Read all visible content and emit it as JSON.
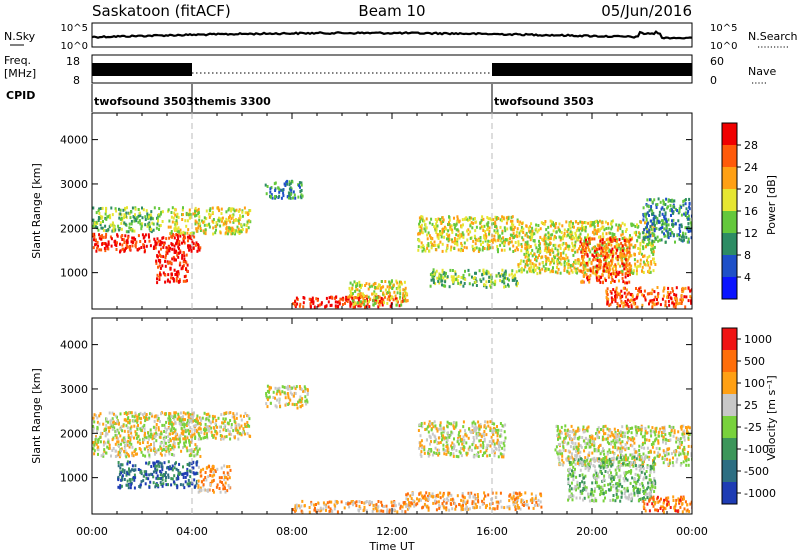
{
  "header": {
    "station": "Saskatoon (fitACF)",
    "beam": "Beam 10",
    "date": "05/Jun/2016"
  },
  "noise_panel": {
    "left_label": "N.Sky",
    "right_label": "N.Search",
    "left_ticks": [
      "10^5",
      "10^0"
    ],
    "right_ticks": [
      "10^5",
      "10^0"
    ]
  },
  "freq_panel": {
    "left_label_top": "Freq.",
    "left_label_bottom": "[MHz]",
    "right_label": "Nave",
    "left_ticks": [
      "18",
      "8"
    ],
    "right_ticks": [
      "60",
      "0"
    ]
  },
  "cpid": {
    "label": "CPID",
    "segments": [
      {
        "name": "twofsound 3503",
        "start_h": 0,
        "end_h": 4
      },
      {
        "name": "themis 3300",
        "start_h": 4,
        "end_h": 16
      },
      {
        "name": "twofsound 3503",
        "start_h": 16,
        "end_h": 24
      }
    ]
  },
  "x_axis": {
    "label": "Time UT",
    "range_h": [
      0,
      24
    ],
    "ticks": [
      {
        "h": 0,
        "label": "00:00"
      },
      {
        "h": 4,
        "label": "04:00"
      },
      {
        "h": 8,
        "label": "08:00"
      },
      {
        "h": 12,
        "label": "12:00"
      },
      {
        "h": 16,
        "label": "16:00"
      },
      {
        "h": 20,
        "label": "20:00"
      },
      {
        "h": 24,
        "label": "00:00"
      }
    ]
  },
  "chart_data": [
    {
      "type": "heatmap",
      "name": "power",
      "ylabel": "Slant Range [km]",
      "ylim": [
        180,
        4600
      ],
      "yticks": [
        1000,
        2000,
        3000,
        4000
      ],
      "colorbar_label": "Power [dB]",
      "colorbar_ticks": [
        "4",
        "8",
        "12",
        "16",
        "20",
        "24",
        "28"
      ],
      "colorbar_colors": [
        "#0a14ff",
        "#1e50c8",
        "#2d8c64",
        "#64c83c",
        "#e6e632",
        "#ffa014",
        "#ff5a0a",
        "#f00000"
      ],
      "features": [
        {
          "h": [
            0.0,
            4.3
          ],
          "range_km": [
            1500,
            1900
          ],
          "level": 7
        },
        {
          "h": [
            0.0,
            2.8
          ],
          "range_km": [
            1950,
            2500
          ],
          "level": 3
        },
        {
          "h": [
            2.5,
            3.8
          ],
          "range_km": [
            800,
            1500
          ],
          "level": 7
        },
        {
          "h": [
            3.0,
            6.3
          ],
          "range_km": [
            1900,
            2500
          ],
          "level": 4
        },
        {
          "h": [
            6.9,
            8.4
          ],
          "range_km": [
            2700,
            3100
          ],
          "level": 2
        },
        {
          "h": [
            8.0,
            12.5
          ],
          "range_km": [
            250,
            500
          ],
          "level": 7
        },
        {
          "h": [
            10.2,
            12.6
          ],
          "range_km": [
            300,
            850
          ],
          "level": 4
        },
        {
          "h": [
            13.0,
            17.0
          ],
          "range_km": [
            1500,
            2300
          ],
          "level": 4
        },
        {
          "h": [
            13.5,
            17.0
          ],
          "range_km": [
            700,
            1100
          ],
          "level": 3
        },
        {
          "h": [
            17.0,
            22.5
          ],
          "range_km": [
            1000,
            2200
          ],
          "level": 4
        },
        {
          "h": [
            19.5,
            21.5
          ],
          "range_km": [
            800,
            1800
          ],
          "level": 6
        },
        {
          "h": [
            20.5,
            24.0
          ],
          "range_km": [
            250,
            700
          ],
          "level": 6
        },
        {
          "h": [
            22.0,
            24.0
          ],
          "range_km": [
            1700,
            2700
          ],
          "level": 2
        }
      ]
    },
    {
      "type": "heatmap",
      "name": "velocity",
      "ylabel": "Slant Range [km]",
      "ylim": [
        180,
        4600
      ],
      "yticks": [
        1000,
        2000,
        3000,
        4000
      ],
      "colorbar_label": "Velocity [m s⁻¹]",
      "colorbar_ticks": [
        "1000",
        "500",
        "100",
        "25",
        "-25",
        "-100",
        "-500",
        "-1000"
      ],
      "colorbar_colors": [
        "#1e3cb4",
        "#2d6e82",
        "#3c965a",
        "#78d23c",
        "#c8c8c8",
        "#ffa014",
        "#ff6e0a",
        "#f01414"
      ],
      "features": [
        {
          "h": [
            0.0,
            4.3
          ],
          "range_km": [
            1500,
            2500
          ],
          "level": 4
        },
        {
          "h": [
            1.0,
            4.2
          ],
          "range_km": [
            800,
            1400
          ],
          "level": 1
        },
        {
          "h": [
            3.0,
            6.3
          ],
          "range_km": [
            1900,
            2500
          ],
          "level": 4
        },
        {
          "h": [
            4.2,
            5.5
          ],
          "range_km": [
            700,
            1300
          ],
          "level": 5
        },
        {
          "h": [
            6.9,
            8.6
          ],
          "range_km": [
            2600,
            3100
          ],
          "level": 4
        },
        {
          "h": [
            8.0,
            12.5
          ],
          "range_km": [
            250,
            500
          ],
          "level": 5
        },
        {
          "h": [
            12.5,
            18.0
          ],
          "range_km": [
            300,
            700
          ],
          "level": 5
        },
        {
          "h": [
            13.0,
            16.5
          ],
          "range_km": [
            1500,
            2300
          ],
          "level": 4
        },
        {
          "h": [
            18.5,
            24.0
          ],
          "range_km": [
            1300,
            2200
          ],
          "level": 4
        },
        {
          "h": [
            19.0,
            22.5
          ],
          "range_km": [
            500,
            1500
          ],
          "level": 3
        },
        {
          "h": [
            22.0,
            24.0
          ],
          "range_km": [
            250,
            600
          ],
          "level": 6
        }
      ]
    }
  ]
}
